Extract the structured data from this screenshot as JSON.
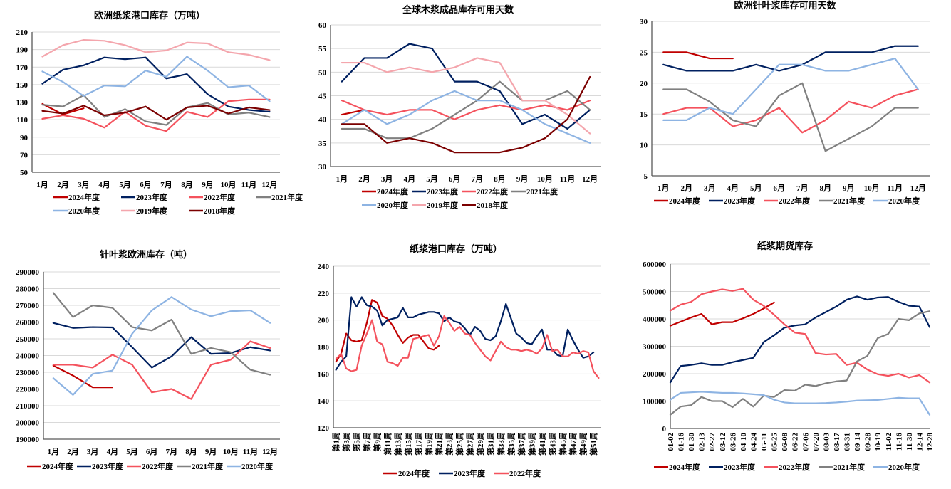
{
  "colors": {
    "2024": "#c00000",
    "2023": "#002060",
    "2022": "#f4525d",
    "2021": "#808080",
    "2020": "#8eb4e3",
    "2019": "#f4a6ad",
    "2018": "#7b0000"
  },
  "chart_data": [
    {
      "id": "c1",
      "type": "line",
      "title": "欧洲纸浆港口库存（万吨）",
      "xlabel": "",
      "ylabel": "",
      "categories": [
        "1月",
        "2月",
        "3月",
        "4月",
        "5月",
        "6月",
        "7月",
        "8月",
        "9月",
        "10月",
        "11月",
        "12月"
      ],
      "ylim": [
        50,
        210
      ],
      "yticks": [
        50,
        70,
        90,
        110,
        130,
        150,
        170,
        190,
        210
      ],
      "grid": true,
      "legend_position": "bottom",
      "series": [
        {
          "name": "2024年度",
          "key": "2024",
          "values": [
            128,
            116,
            123,
            null,
            null,
            null,
            null,
            null,
            null,
            null,
            null,
            null
          ]
        },
        {
          "name": "2023年度",
          "key": "2023",
          "values": [
            151,
            167,
            172,
            181,
            179,
            181,
            157,
            162,
            139,
            125,
            121,
            119
          ]
        },
        {
          "name": "2022年度",
          "key": "2022",
          "values": [
            111,
            115,
            111,
            101,
            119,
            103,
            97,
            119,
            113,
            131,
            133,
            133
          ]
        },
        {
          "name": "2021年度",
          "key": "2021",
          "values": [
            127,
            125,
            138,
            113,
            122,
            108,
            104,
            124,
            129,
            116,
            118,
            113
          ]
        },
        {
          "name": "2020年度",
          "key": "2020",
          "values": [
            165,
            153,
            137,
            149,
            148,
            166,
            159,
            182,
            166,
            147,
            149,
            131
          ]
        },
        {
          "name": "2019年度",
          "key": "2019",
          "values": [
            182,
            195,
            201,
            200,
            195,
            187,
            189,
            198,
            197,
            187,
            184,
            178
          ]
        },
        {
          "name": "2018年度",
          "key": "2018",
          "values": [
            120,
            117,
            126,
            115,
            118,
            125,
            110,
            124,
            126,
            117,
            124,
            121
          ]
        }
      ]
    },
    {
      "id": "c2",
      "type": "line",
      "title": "全球木浆成品库存可用天数",
      "xlabel": "",
      "ylabel": "",
      "categories": [
        "1月",
        "2月",
        "3月",
        "4月",
        "5月",
        "6月",
        "7月",
        "8月",
        "9月",
        "10月",
        "11月",
        "12月"
      ],
      "ylim": [
        30,
        60
      ],
      "yticks": [
        30,
        35,
        40,
        45,
        50,
        55,
        60
      ],
      "grid": true,
      "legend_position": "bottom",
      "series": [
        {
          "name": "2024年度",
          "key": "2024",
          "values": [
            41,
            42,
            null,
            null,
            null,
            null,
            null,
            null,
            null,
            null,
            null,
            null
          ]
        },
        {
          "name": "2023年度",
          "key": "2023",
          "values": [
            48,
            53,
            53,
            56,
            55,
            48,
            48,
            46,
            39,
            41,
            38,
            42
          ]
        },
        {
          "name": "2022年度",
          "key": "2022",
          "values": [
            44,
            42,
            41,
            42,
            42,
            40,
            42,
            43,
            42,
            43,
            42,
            44
          ]
        },
        {
          "name": "2021年度",
          "key": "2021",
          "values": [
            38,
            38,
            36,
            36,
            38,
            41,
            44,
            48,
            44,
            44,
            46,
            42
          ]
        },
        {
          "name": "2020年度",
          "key": "2020",
          "values": [
            39,
            42,
            39,
            41,
            44,
            46,
            44,
            44,
            42,
            39,
            37,
            35
          ]
        },
        {
          "name": "2019年度",
          "key": "2019",
          "values": [
            52,
            52,
            50,
            51,
            50,
            51,
            53,
            52,
            44,
            44,
            41,
            37
          ]
        },
        {
          "name": "2018年度",
          "key": "2018",
          "values": [
            39,
            39,
            35,
            36,
            35,
            33,
            33,
            33,
            34,
            36,
            40,
            49
          ]
        }
      ]
    },
    {
      "id": "c3",
      "type": "line",
      "title": "欧洲针叶浆库存可用天数",
      "xlabel": "",
      "ylabel": "",
      "categories": [
        "1月",
        "2月",
        "3月",
        "4月",
        "5月",
        "6月",
        "7月",
        "8月",
        "9月",
        "10月",
        "11月",
        "12月"
      ],
      "ylim": [
        5,
        30
      ],
      "yticks": [
        5,
        10,
        15,
        20,
        25,
        30
      ],
      "grid": true,
      "legend_position": "bottom",
      "series": [
        {
          "name": "2024年度",
          "key": "2024",
          "values": [
            25,
            25,
            24,
            24,
            null,
            null,
            null,
            null,
            null,
            null,
            null,
            null
          ]
        },
        {
          "name": "2023年度",
          "key": "2023",
          "values": [
            23,
            22,
            22,
            22,
            23,
            22,
            23,
            25,
            25,
            25,
            26,
            26
          ]
        },
        {
          "name": "2022年度",
          "key": "2022",
          "values": [
            15,
            16,
            16,
            13,
            14,
            16,
            12,
            14,
            17,
            16,
            18,
            19
          ]
        },
        {
          "name": "2021年度",
          "key": "2021",
          "values": [
            19,
            19,
            17,
            14,
            13,
            18,
            20,
            9,
            11,
            13,
            16,
            16
          ]
        },
        {
          "name": "2020年度",
          "key": "2020",
          "values": [
            14,
            14,
            16,
            15,
            19,
            23,
            23,
            22,
            22,
            23,
            24,
            19
          ]
        }
      ]
    },
    {
      "id": "c4",
      "type": "line",
      "title": "针叶浆欧洲库存（吨）",
      "xlabel": "",
      "ylabel": "",
      "categories": [
        "1月",
        "2月",
        "3月",
        "4月",
        "5月",
        "6月",
        "7月",
        "8月",
        "9月",
        "10月",
        "11月",
        "12月"
      ],
      "ylim": [
        190000,
        290000
      ],
      "yticks": [
        190000,
        200000,
        210000,
        220000,
        230000,
        240000,
        250000,
        260000,
        270000,
        280000,
        290000
      ],
      "grid": true,
      "legend_position": "bottom",
      "series": [
        {
          "name": "2024年度",
          "key": "2024",
          "values": [
            234000,
            228000,
            221000,
            221000,
            null,
            null,
            null,
            null,
            null,
            null,
            null,
            null
          ]
        },
        {
          "name": "2023年度",
          "key": "2023",
          "values": [
            259500,
            256500,
            257000,
            256800,
            245000,
            232800,
            239500,
            251000,
            241000,
            241500,
            245000,
            243000
          ]
        },
        {
          "name": "2022年度",
          "key": "2022",
          "values": [
            234500,
            234500,
            232800,
            240500,
            234500,
            218000,
            220000,
            214000,
            234500,
            237500,
            248500,
            244500
          ]
        },
        {
          "name": "2021年度",
          "key": "2021",
          "values": [
            277500,
            263000,
            270000,
            268500,
            257000,
            255000,
            261500,
            241000,
            244500,
            242000,
            231500,
            228500
          ]
        },
        {
          "name": "2020年度",
          "key": "2020",
          "values": [
            226500,
            216500,
            229000,
            231000,
            253000,
            267000,
            275000,
            267500,
            263500,
            266500,
            267000,
            259500
          ]
        }
      ]
    },
    {
      "id": "c5",
      "type": "line",
      "title": "纸浆港口库存（万吨）",
      "xlabel": "",
      "ylabel": "",
      "categories": [
        "第1周",
        "第2周",
        "第3周",
        "第4周",
        "第5周",
        "第6周",
        "第7周",
        "第8周",
        "第9周",
        "第10周",
        "第11周",
        "第12周",
        "第13周",
        "第14周",
        "第15周",
        "第16周",
        "第17周",
        "第18周",
        "第19周",
        "第20周",
        "第21周",
        "第22周",
        "第23周",
        "第24周",
        "第25周",
        "第26周",
        "第27周",
        "第28周",
        "第29周",
        "第30周",
        "第31周",
        "第32周",
        "第33周",
        "第34周",
        "第35周",
        "第36周",
        "第37周",
        "第38周",
        "第39周",
        "第40周",
        "第41周",
        "第42周",
        "第43周",
        "第44周",
        "第45周",
        "第46周",
        "第47周",
        "第48周",
        "第49周",
        "第50周",
        "第51周",
        "第52周"
      ],
      "tick_labels": [
        "第1周",
        "第3周",
        "第5周",
        "第7周",
        "第9周",
        "第11周",
        "第13周",
        "第15周",
        "第17周",
        "第19周",
        "第21周",
        "第23周",
        "第25周",
        "第27周",
        "第29周",
        "第31周",
        "第33周",
        "第35周",
        "第37周",
        "第39周",
        "第41周",
        "第43周",
        "第45周",
        "第47周",
        "第49周",
        "第51周"
      ],
      "ylim": [
        120,
        240
      ],
      "yticks": [
        120,
        140,
        160,
        180,
        200,
        220,
        240
      ],
      "grid": true,
      "legend_position": "bottom",
      "series": [
        {
          "name": "2024年度",
          "key": "2024",
          "values": [
            169,
            175,
            190,
            185,
            184,
            185,
            198,
            215,
            213,
            203,
            201,
            196,
            189,
            183,
            187,
            189,
            189,
            184,
            179,
            178,
            181,
            null,
            null,
            null,
            null,
            null,
            null,
            null,
            null,
            null,
            null,
            null,
            null,
            null,
            null,
            null,
            null,
            null,
            null,
            null,
            null,
            null,
            null,
            null,
            null,
            null,
            null,
            null,
            null,
            null,
            null,
            null
          ]
        },
        {
          "name": "2023年度",
          "key": "2023",
          "values": [
            163,
            169,
            173,
            217,
            210,
            217,
            211,
            210,
            207,
            196,
            200,
            201,
            202,
            209,
            202,
            202,
            204,
            205,
            206,
            206,
            205,
            199,
            202,
            199,
            198,
            194,
            189,
            195,
            192,
            186,
            185,
            188,
            199,
            212,
            201,
            190,
            187,
            183,
            182,
            188,
            193,
            178,
            178,
            174,
            173,
            193,
            185,
            178,
            172,
            173,
            176,
            null
          ]
        },
        {
          "name": "2022年度",
          "key": "2022",
          "values": [
            171,
            175,
            164,
            162,
            163,
            181,
            190,
            200,
            184,
            182,
            169,
            168,
            166,
            172,
            172,
            186,
            187,
            188,
            189,
            181,
            188,
            203,
            198,
            192,
            195,
            190,
            189,
            183,
            178,
            173,
            170,
            177,
            184,
            180,
            178,
            178,
            177,
            178,
            177,
            175,
            179,
            189,
            177,
            178,
            173,
            173,
            176,
            175,
            177,
            176,
            162,
            157
          ]
        }
      ]
    },
    {
      "id": "c6",
      "type": "line",
      "title": "纸浆期货库存",
      "xlabel": "",
      "ylabel": "",
      "categories": [
        "01-02",
        "01-16",
        "01-30",
        "02-13",
        "02-27",
        "03-12",
        "03-26",
        "04-10",
        "04-24",
        "05-11",
        "05-25",
        "06-08",
        "06-22",
        "07-06",
        "07-20",
        "08-03",
        "08-17",
        "08-31",
        "09-14",
        "09-28",
        "10-19",
        "11-02",
        "11-16",
        "11-30",
        "12-14",
        "12-28"
      ],
      "ylim": [
        0,
        600000
      ],
      "yticks": [
        0,
        100000,
        200000,
        300000,
        400000,
        500000,
        600000
      ],
      "grid": true,
      "legend_position": "bottom",
      "series": [
        {
          "name": "2024年度",
          "key": "2024",
          "values": [
            375000,
            390000,
            405000,
            418000,
            380000,
            388000,
            388000,
            402000,
            418000,
            438000,
            460000,
            null,
            null,
            null,
            null,
            null,
            null,
            null,
            null,
            null,
            null,
            null,
            null,
            null,
            null,
            null
          ]
        },
        {
          "name": "2023年度",
          "key": "2023",
          "values": [
            168000,
            228000,
            232000,
            238000,
            232000,
            232000,
            242000,
            250000,
            258000,
            315000,
            340000,
            368000,
            376000,
            380000,
            405000,
            425000,
            445000,
            470000,
            482000,
            470000,
            478000,
            480000,
            462000,
            448000,
            445000,
            370000
          ]
        },
        {
          "name": "2022年度",
          "key": "2022",
          "values": [
            430000,
            452000,
            462000,
            490000,
            500000,
            508000,
            502000,
            510000,
            470000,
            448000,
            415000,
            380000,
            350000,
            345000,
            275000,
            270000,
            272000,
            232000,
            240000,
            215000,
            198000,
            192000,
            200000,
            186000,
            195000,
            168000
          ]
        },
        {
          "name": "2021年度",
          "key": "2021",
          "values": [
            50000,
            80000,
            85000,
            115000,
            100000,
            100000,
            78000,
            108000,
            80000,
            120000,
            115000,
            140000,
            138000,
            160000,
            155000,
            165000,
            172000,
            175000,
            245000,
            265000,
            330000,
            345000,
            400000,
            395000,
            420000,
            428000
          ]
        },
        {
          "name": "2020年度",
          "key": "2020",
          "values": [
            105000,
            130000,
            132000,
            134000,
            132000,
            130000,
            130000,
            128000,
            125000,
            122000,
            105000,
            95000,
            92000,
            92000,
            92000,
            93000,
            95000,
            98000,
            102000,
            103000,
            104000,
            108000,
            112000,
            110000,
            110000,
            50000
          ]
        }
      ]
    }
  ]
}
